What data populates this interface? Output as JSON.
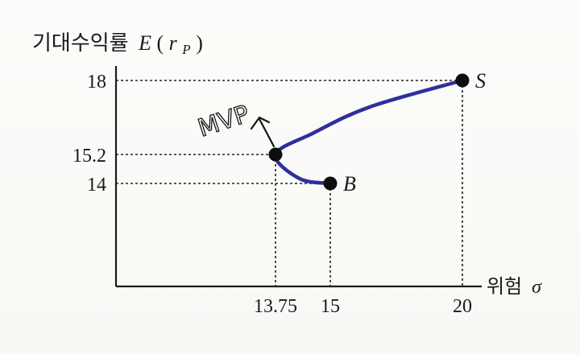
{
  "chart_data": {
    "type": "line",
    "ylabel_korean": "기대수익률",
    "ylabel_symbol_e": "E",
    "ylabel_paren_open": "(",
    "ylabel_r": "r",
    "ylabel_sub": "P",
    "ylabel_paren_close": ")",
    "xlabel_korean": "위험",
    "xlabel_symbol": "σ",
    "x_ticks": [
      "13.75",
      "15",
      "20"
    ],
    "y_ticks": [
      "18",
      "15.2",
      "14"
    ],
    "points": [
      {
        "label": "S",
        "x": 20,
        "y": 18
      },
      {
        "label": "",
        "x": 13.75,
        "y": 15.2
      },
      {
        "label": "B",
        "x": 15,
        "y": 14
      }
    ],
    "curve": [
      {
        "x": 15,
        "y": 14
      },
      {
        "x": 14.3,
        "y": 14.2
      },
      {
        "x": 13.75,
        "y": 15.2
      },
      {
        "x": 14.6,
        "y": 16.0
      },
      {
        "x": 16.5,
        "y": 17.0
      },
      {
        "x": 20,
        "y": 18
      }
    ],
    "annotation": "MVP",
    "colors": {
      "curve": "#2d2f9e",
      "points": "#0d0d0d",
      "axes": "#1a1a1a"
    }
  }
}
